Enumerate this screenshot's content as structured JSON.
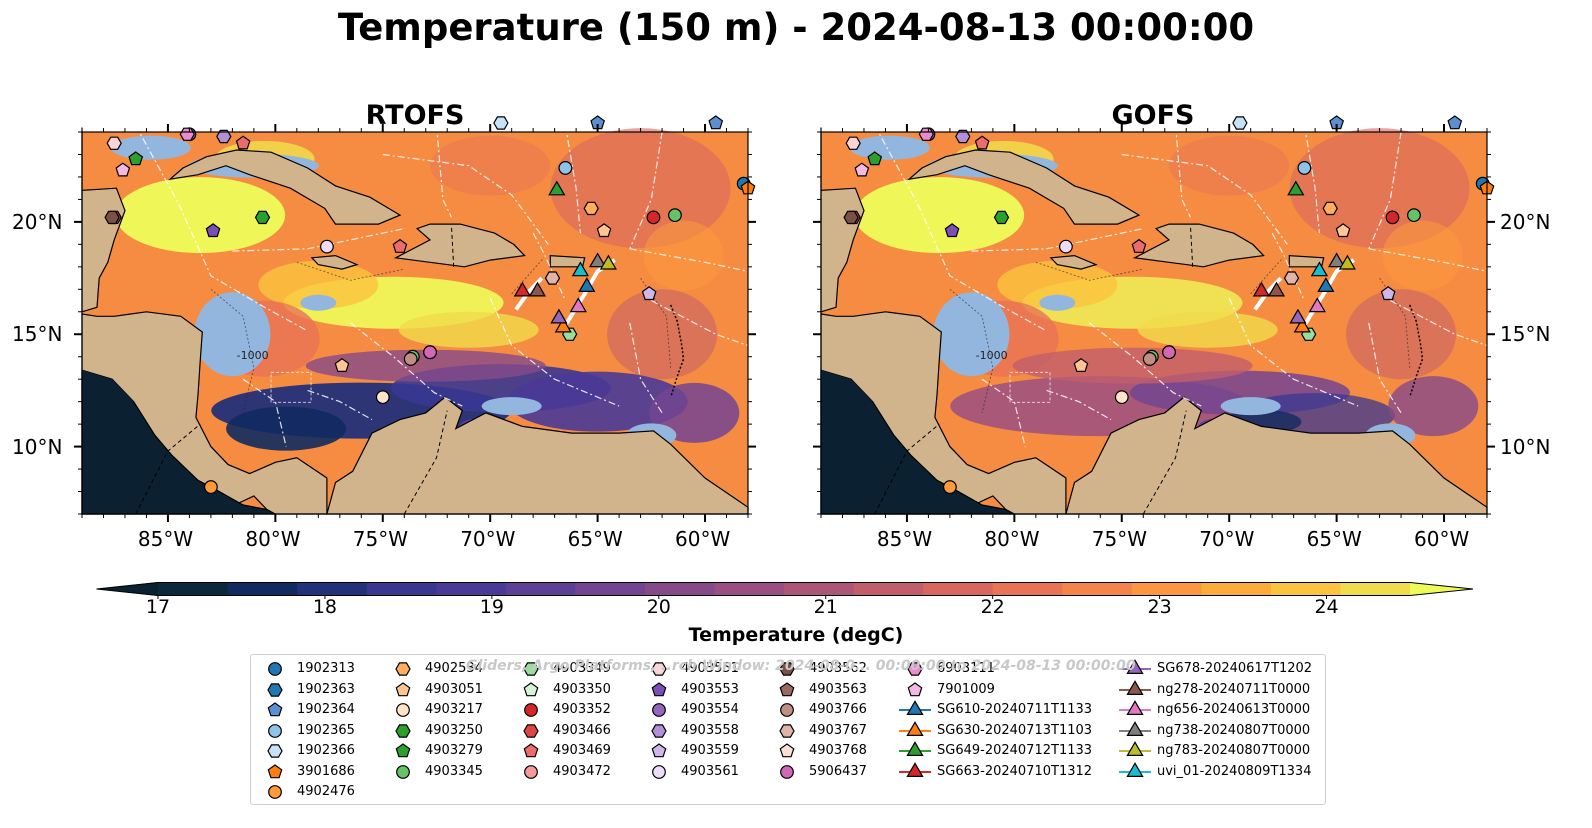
{
  "title": "Temperature (150 m) - 2024-08-13 00:00:00",
  "panels": [
    {
      "title": "RTOFS",
      "variant": "rtofs"
    },
    {
      "title": "GOFS",
      "variant": "gofs"
    }
  ],
  "lon_ticks": [
    "85°W",
    "80°W",
    "75°W",
    "70°W",
    "65°W",
    "60°W"
  ],
  "lon_values": [
    -85,
    -80,
    -75,
    -70,
    -65,
    -60
  ],
  "lat_ticks": [
    "20°N",
    "15°N",
    "10°N"
  ],
  "lat_values": [
    20,
    15,
    10
  ],
  "extent": {
    "lon": [
      -89,
      -58
    ],
    "lat": [
      7,
      24
    ]
  },
  "contour_labels": [
    "-1000"
  ],
  "colorbar": {
    "label": "Temperature (degC)",
    "ticks": [
      "17",
      "18",
      "19",
      "20",
      "21",
      "22",
      "23",
      "24"
    ],
    "range": [
      17,
      24.5
    ],
    "colors": [
      "#0a2a3a",
      "#112a5f",
      "#23307a",
      "#3a3791",
      "#4a3a97",
      "#5e3f96",
      "#734491",
      "#874a89",
      "#9b4f80",
      "#ad5576",
      "#c25e6b",
      "#d86760",
      "#e97355",
      "#f5844a",
      "#fb9740",
      "#fdab3a",
      "#fbc33e",
      "#f1dc4b"
    ],
    "min_color": "#0b2131",
    "max_color": "#eefc5a"
  },
  "watermark": "Gliders, Argo Platforms, ..rch Window: 2024-08-0... 00:00:00 to 2024-08-13 00:00:00",
  "legend": [
    {
      "label": "1902313",
      "shape": "circle",
      "color": "#1f77b4"
    },
    {
      "label": "1902363",
      "shape": "hexagon",
      "color": "#1f77b4"
    },
    {
      "label": "1902364",
      "shape": "pentagon",
      "color": "#5b8fd0"
    },
    {
      "label": "1902365",
      "shape": "circle",
      "color": "#8cc3ea"
    },
    {
      "label": "1902366",
      "shape": "hexagon",
      "color": "#c6e2f6"
    },
    {
      "label": "3901686",
      "shape": "pentagon",
      "color": "#ff7f0e"
    },
    {
      "label": "4902476",
      "shape": "circle",
      "color": "#ff9a3a"
    },
    {
      "label": "4902534",
      "shape": "hexagon",
      "color": "#ffae5c"
    },
    {
      "label": "4903051",
      "shape": "pentagon",
      "color": "#ffc592"
    },
    {
      "label": "4903217",
      "shape": "circle",
      "color": "#ffe4c8"
    },
    {
      "label": "4903250",
      "shape": "hexagon",
      "color": "#2ca02c"
    },
    {
      "label": "4903279",
      "shape": "pentagon",
      "color": "#2ca02c"
    },
    {
      "label": "4903345",
      "shape": "circle",
      "color": "#66c266"
    },
    {
      "label": "4903349",
      "shape": "hexagon",
      "color": "#99dd99"
    },
    {
      "label": "4903350",
      "shape": "pentagon",
      "color": "#d6f5d6"
    },
    {
      "label": "4903352",
      "shape": "circle",
      "color": "#d62728"
    },
    {
      "label": "4903466",
      "shape": "hexagon",
      "color": "#e04545"
    },
    {
      "label": "4903469",
      "shape": "pentagon",
      "color": "#ee6b6b"
    },
    {
      "label": "4903472",
      "shape": "circle",
      "color": "#f59a9a"
    },
    {
      "label": "4903551",
      "shape": "hexagon",
      "color": "#fbd5d5"
    },
    {
      "label": "4903553",
      "shape": "pentagon",
      "color": "#7b4fb8"
    },
    {
      "label": "4903554",
      "shape": "circle",
      "color": "#9467bd"
    },
    {
      "label": "4903558",
      "shape": "hexagon",
      "color": "#b28fd6"
    },
    {
      "label": "4903559",
      "shape": "pentagon",
      "color": "#cfb5ea"
    },
    {
      "label": "4903561",
      "shape": "circle",
      "color": "#ecdcf8"
    },
    {
      "label": "4903562",
      "shape": "hexagon",
      "color": "#7a5047"
    },
    {
      "label": "4903563",
      "shape": "pentagon",
      "color": "#9a6a5e"
    },
    {
      "label": "4903766",
      "shape": "circle",
      "color": "#bf8f84"
    },
    {
      "label": "4903767",
      "shape": "hexagon",
      "color": "#e0b4a8"
    },
    {
      "label": "4903768",
      "shape": "pentagon",
      "color": "#fbe0d6"
    },
    {
      "label": "5906437",
      "shape": "circle",
      "color": "#d267b5"
    },
    {
      "label": "6903111",
      "shape": "hexagon",
      "color": "#e88ccc"
    },
    {
      "label": "7901009",
      "shape": "pentagon",
      "color": "#f5b8e2"
    },
    {
      "label": "SG610-20240711T1133",
      "shape": "triangle",
      "color": "#1f77b4"
    },
    {
      "label": "SG630-20240713T1103",
      "shape": "triangle",
      "color": "#ff7f0e"
    },
    {
      "label": "SG649-20240712T1133",
      "shape": "triangle",
      "color": "#2ca02c"
    },
    {
      "label": "SG663-20240710T1312",
      "shape": "triangle",
      "color": "#d62728"
    },
    {
      "label": "SG678-20240617T1202",
      "shape": "triangle",
      "color": "#9467bd"
    },
    {
      "label": "ng278-20240711T0000",
      "shape": "triangle",
      "color": "#8c564b"
    },
    {
      "label": "ng656-20240613T0000",
      "shape": "triangle",
      "color": "#e377c2"
    },
    {
      "label": "ng738-20240807T0000",
      "shape": "triangle",
      "color": "#7f7f7f"
    },
    {
      "label": "ng783-20240807T0000",
      "shape": "triangle",
      "color": "#bcbd22"
    },
    {
      "label": "uvi_01-20240809T1334",
      "shape": "triangle",
      "color": "#17becf"
    }
  ],
  "markers": [
    {
      "label": "1902313",
      "lon": -58.2,
      "lat": 21.7
    },
    {
      "label": "1902364",
      "lon": -59.5,
      "lat": 24.4
    },
    {
      "label": "1902365",
      "lon": -66.5,
      "lat": 22.4
    },
    {
      "label": "1902366",
      "lon": -69.5,
      "lat": 24.4
    },
    {
      "label": "1902364",
      "lon": -65.0,
      "lat": 24.4
    },
    {
      "label": "3901686",
      "lon": -58.0,
      "lat": 21.5
    },
    {
      "label": "4902476",
      "lon": -83.0,
      "lat": 8.2
    },
    {
      "label": "4902534",
      "lon": -65.3,
      "lat": 20.6
    },
    {
      "label": "4903051",
      "lon": -76.9,
      "lat": 13.6
    },
    {
      "label": "4903051",
      "lon": -64.7,
      "lat": 19.6
    },
    {
      "label": "4903217",
      "lon": -75.0,
      "lat": 12.2
    },
    {
      "label": "4903250",
      "lon": -80.6,
      "lat": 20.2
    },
    {
      "label": "4903279",
      "lon": -86.5,
      "lat": 22.8
    },
    {
      "label": "4903345",
      "lon": -61.4,
      "lat": 20.3
    },
    {
      "label": "4903345",
      "lon": -73.6,
      "lat": 14.0
    },
    {
      "label": "4903349",
      "lon": -66.3,
      "lat": 15.0
    },
    {
      "label": "4903352",
      "lon": -62.4,
      "lat": 20.2
    },
    {
      "label": "4903466",
      "lon": -87.5,
      "lat": 20.2
    },
    {
      "label": "4903469",
      "lon": -81.5,
      "lat": 23.5
    },
    {
      "label": "4903469",
      "lon": -74.2,
      "lat": 18.9
    },
    {
      "label": "4903472",
      "lon": -72.8,
      "lat": 14.2
    },
    {
      "label": "4903551",
      "lon": -87.5,
      "lat": 23.5
    },
    {
      "label": "4903553",
      "lon": -82.9,
      "lat": 19.6
    },
    {
      "label": "4903554",
      "lon": -84.0,
      "lat": 23.9
    },
    {
      "label": "4903558",
      "lon": -82.4,
      "lat": 23.8
    },
    {
      "label": "4903561",
      "lon": -77.6,
      "lat": 18.9
    },
    {
      "label": "4903562",
      "lon": -87.6,
      "lat": 20.2
    },
    {
      "label": "4903766",
      "lon": -73.7,
      "lat": 13.9
    },
    {
      "label": "4903767",
      "lon": -67.1,
      "lat": 17.5
    },
    {
      "label": "5906437",
      "lon": -72.8,
      "lat": 14.2
    },
    {
      "label": "6903111",
      "lon": -84.1,
      "lat": 23.9
    },
    {
      "label": "7901009",
      "lon": -87.1,
      "lat": 22.3
    },
    {
      "label": "4903559",
      "lon": -62.6,
      "lat": 16.8
    },
    {
      "label": "SG610-20240711T1133",
      "lon": -65.5,
      "lat": 17.1
    },
    {
      "label": "SG630-20240713T1103",
      "lon": -66.6,
      "lat": 15.3
    },
    {
      "label": "SG649-20240712T1133",
      "lon": -66.9,
      "lat": 21.4
    },
    {
      "label": "SG663-20240710T1312",
      "lon": -68.5,
      "lat": 16.9
    },
    {
      "label": "SG678-20240617T1202",
      "lon": -66.8,
      "lat": 15.7
    },
    {
      "label": "ng278-20240711T0000",
      "lon": -67.8,
      "lat": 16.9
    },
    {
      "label": "ng656-20240613T0000",
      "lon": -65.9,
      "lat": 16.2
    },
    {
      "label": "ng738-20240807T0000",
      "lon": -65.0,
      "lat": 18.2
    },
    {
      "label": "ng783-20240807T0000",
      "lon": -64.5,
      "lat": 18.1
    },
    {
      "label": "uvi_01-20240809T1334",
      "lon": -65.8,
      "lat": 17.8
    }
  ]
}
